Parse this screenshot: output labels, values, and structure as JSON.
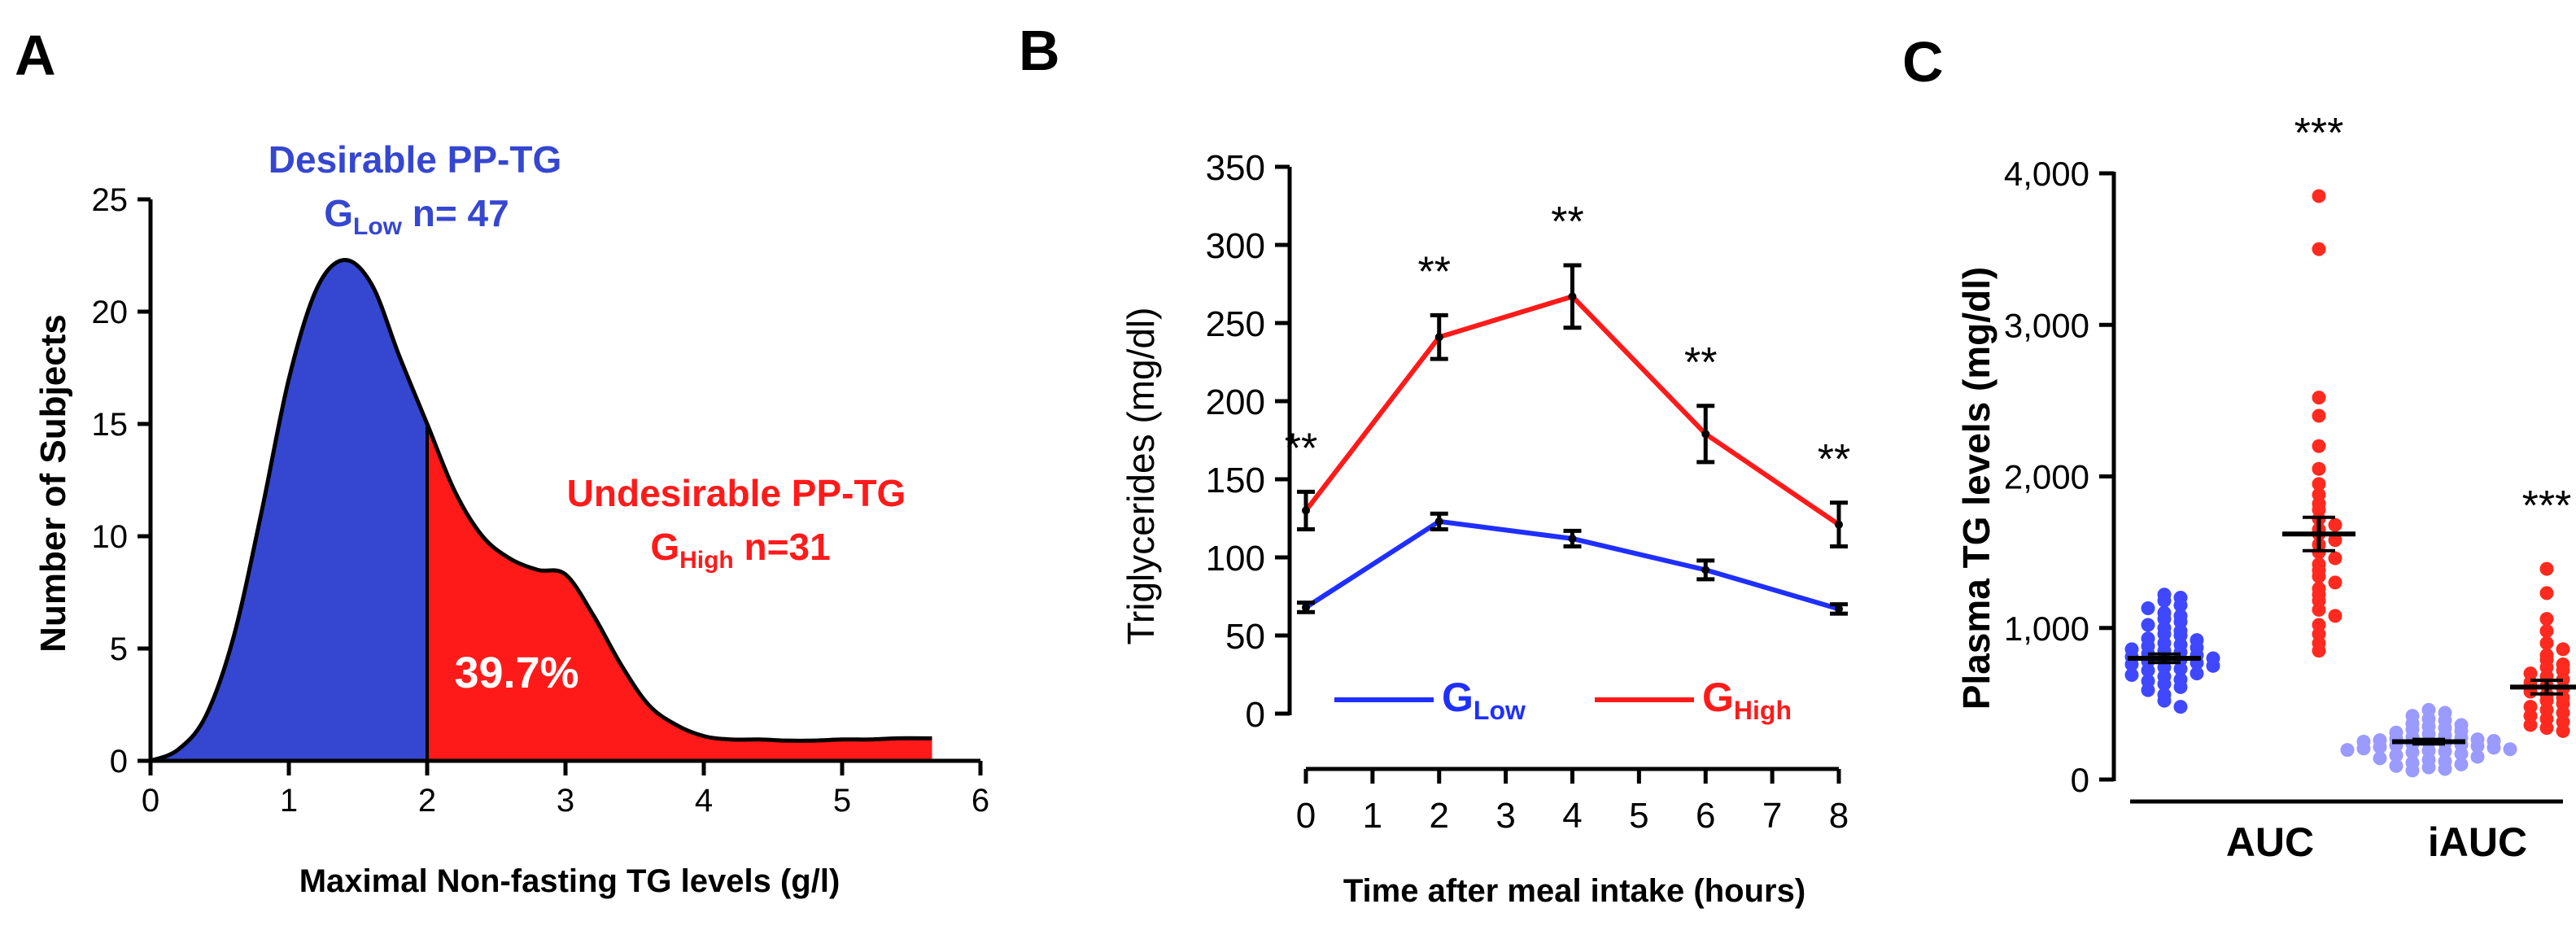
{
  "chart_data": [
    {
      "panel": "A",
      "type": "area",
      "title": "",
      "xlabel": "Maximal Non-fasting TG levels (g/l)",
      "ylabel": "Number of Subjects",
      "xlim": [
        0,
        6
      ],
      "ylim": [
        0,
        25
      ],
      "xticks": [
        "0",
        "1",
        "2",
        "3",
        "4",
        "5",
        "6"
      ],
      "yticks": [
        "0",
        "5",
        "10",
        "15",
        "20",
        "25"
      ],
      "split_x": 2,
      "density": {
        "x": [
          0,
          0.2,
          0.4,
          0.6,
          0.8,
          1.0,
          1.2,
          1.4,
          1.6,
          1.8,
          2.0,
          2.2,
          2.4,
          2.6,
          2.8,
          3.0,
          3.2,
          3.4,
          3.6,
          3.8,
          4.0,
          4.2,
          4.4,
          4.6,
          4.8,
          5.0,
          5.2,
          5.4,
          5.65
        ],
        "y": [
          0,
          0.5,
          2,
          5.5,
          11,
          17,
          21,
          22.3,
          21.2,
          18,
          15,
          12,
          10,
          9,
          8.5,
          8.3,
          6.5,
          4.3,
          2.5,
          1.6,
          1.1,
          0.95,
          0.95,
          0.9,
          0.9,
          0.95,
          0.95,
          1,
          1
        ]
      },
      "low_group": {
        "title": "Desirable PP-TG",
        "g": "G",
        "sub": "Low",
        "rest": " n= 47",
        "color": "#3547d0"
      },
      "high_group": {
        "title": "Undesirable PP-TG",
        "g": "G",
        "sub": "High",
        "rest": " n=31",
        "color": "#ff1a1a",
        "percent": "39.7%"
      }
    },
    {
      "panel": "B",
      "type": "line",
      "xlabel": "Time after meal intake (hours)",
      "ylabel": "Triglycerides (mg/dl)",
      "xlim": [
        0,
        8
      ],
      "ylim": [
        0,
        350
      ],
      "xticks": [
        "0",
        "1",
        "2",
        "3",
        "4",
        "5",
        "6",
        "7",
        "8"
      ],
      "yticks": [
        "0",
        "50",
        "100",
        "150",
        "200",
        "250",
        "300",
        "350"
      ],
      "x": [
        0,
        2,
        4,
        6,
        8
      ],
      "series": [
        {
          "name": "GLow",
          "label_main": "G",
          "label_sub": "Low",
          "color": "#1f2fff",
          "values": [
            68,
            123,
            112,
            92,
            67
          ],
          "errors": [
            3,
            5,
            5,
            6,
            3
          ]
        },
        {
          "name": "GHigh",
          "label_main": "G",
          "label_sub": "High",
          "color": "#ff1a1a",
          "values": [
            130,
            241,
            267,
            179,
            121
          ],
          "errors": [
            12,
            14,
            20,
            18,
            14
          ]
        }
      ],
      "annotations": [
        "**",
        "**",
        "**",
        "**",
        "**"
      ]
    },
    {
      "panel": "C",
      "type": "scatter",
      "xlabel": "",
      "ylabel": "Plasma TG levels (mg/dl)",
      "ylim": [
        0,
        4000
      ],
      "yticks": [
        "0",
        "1,000",
        "2,000",
        "3,000",
        "4,000"
      ],
      "categories": [
        "AUC",
        "iAUC"
      ],
      "groups": [
        {
          "category": "AUC",
          "group": "GLow",
          "color": "#3f48ff",
          "mean": 800,
          "sem": 28,
          "values": [
            1220,
            1200,
            1180,
            1150,
            1130,
            1100,
            1080,
            1060,
            1040,
            1020,
            1000,
            980,
            960,
            950,
            930,
            920,
            900,
            890,
            880,
            870,
            860,
            850,
            840,
            830,
            820,
            810,
            800,
            795,
            790,
            780,
            770,
            760,
            750,
            740,
            730,
            720,
            700,
            690,
            680,
            660,
            650,
            630,
            610,
            590,
            560,
            520,
            480
          ]
        },
        {
          "category": "AUC",
          "group": "GHigh",
          "color": "#ff2a1f",
          "mean": 1620,
          "sem": 110,
          "values": [
            3850,
            3500,
            2520,
            2400,
            2200,
            2050,
            1950,
            1880,
            1820,
            1780,
            1720,
            1680,
            1650,
            1620,
            1580,
            1550,
            1500,
            1460,
            1420,
            1380,
            1340,
            1300,
            1260,
            1220,
            1180,
            1120,
            1080,
            1020,
            960,
            900,
            850
          ]
        },
        {
          "category": "iAUC",
          "group": "GLow",
          "color": "#9a9aff",
          "mean": 250,
          "sem": 15,
          "values": [
            460,
            440,
            420,
            400,
            390,
            370,
            360,
            350,
            340,
            330,
            320,
            310,
            300,
            290,
            280,
            275,
            270,
            265,
            260,
            255,
            250,
            245,
            240,
            235,
            230,
            225,
            220,
            215,
            210,
            205,
            200,
            195,
            190,
            185,
            180,
            170,
            160,
            150,
            140,
            130,
            120,
            110,
            100,
            90,
            80,
            70,
            60
          ]
        },
        {
          "category": "iAUC",
          "group": "GHigh",
          "color": "#ff2a1f",
          "mean": 610,
          "sem": 45,
          "values": [
            1390,
            1230,
            1060,
            980,
            900,
            860,
            820,
            790,
            760,
            740,
            720,
            700,
            680,
            660,
            640,
            620,
            600,
            580,
            560,
            540,
            520,
            500,
            480,
            460,
            440,
            420,
            400,
            380,
            360,
            340,
            320
          ]
        }
      ],
      "annotations": [
        "***",
        "***"
      ]
    }
  ],
  "panels": {
    "a": "A",
    "b": "B",
    "c": "C"
  }
}
